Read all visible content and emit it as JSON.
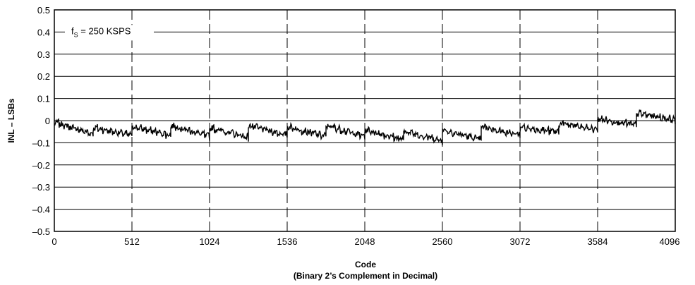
{
  "chart_data": {
    "type": "line",
    "title": "",
    "ylabel": "INL – LSBs",
    "xlabel": "Code",
    "xlabel_sub": "(Binary 2’s Complement in Decimal)",
    "annotation": {
      "main": "f",
      "sub": "S",
      "rest": " = 250 KSPS"
    },
    "xlim": [
      0,
      4096
    ],
    "ylim": [
      -0.5,
      0.5
    ],
    "x_ticks": [
      0,
      512,
      1024,
      1536,
      2048,
      2560,
      3072,
      3584,
      4096
    ],
    "x_tick_labels": [
      "0",
      "512",
      "1024",
      "1536",
      "2048",
      "2560",
      "3072",
      "3584",
      "4096"
    ],
    "y_ticks": [
      0.5,
      0.4,
      0.3,
      0.2,
      0.1,
      0,
      -0.1,
      -0.2,
      -0.3,
      -0.4,
      -0.5
    ],
    "y_tick_labels": [
      "0.5",
      "0.4",
      "0.3",
      "0.2",
      "0.1",
      "0",
      "–0.1",
      "–0.2",
      "–0.3",
      "–0.4",
      "–0.5"
    ],
    "grid": {
      "horizontal": "solid",
      "vertical": "dashed"
    },
    "line_color": "#000000",
    "series": [
      {
        "segment_starts": [
          0,
          256,
          512,
          768,
          1024,
          1280,
          1536,
          1792,
          2048,
          2304,
          2560,
          2816,
          3072,
          3328,
          3584,
          3840
        ],
        "segment_start_values": [
          -0.005,
          -0.03,
          -0.025,
          -0.02,
          -0.03,
          -0.02,
          -0.025,
          -0.02,
          -0.04,
          -0.045,
          -0.04,
          -0.025,
          -0.03,
          -0.01,
          0.01,
          0.035
        ],
        "segment_end_values": [
          -0.06,
          -0.065,
          -0.065,
          -0.07,
          -0.075,
          -0.065,
          -0.07,
          -0.07,
          -0.085,
          -0.09,
          -0.085,
          -0.065,
          -0.05,
          -0.04,
          -0.02,
          0.005
        ],
        "noise_amplitude": 0.012
      }
    ]
  }
}
